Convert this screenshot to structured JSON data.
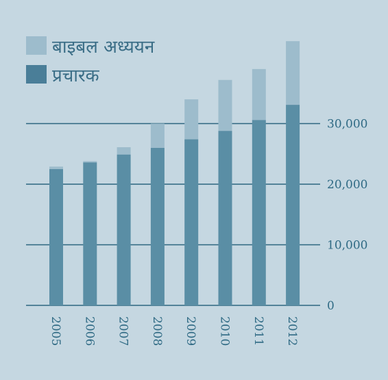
{
  "chart_data": {
    "type": "bar",
    "stacked": true,
    "categories": [
      "2005",
      "2006",
      "2007",
      "2008",
      "2009",
      "2010",
      "2011",
      "2012"
    ],
    "series": [
      {
        "name": "प्रचारक",
        "color": "#5a8ea5",
        "values": [
          22500,
          23600,
          24900,
          26000,
          27400,
          28800,
          30600,
          33100
        ]
      },
      {
        "name": "बाइबल अध्ययन",
        "color": "#9dbccc",
        "values": [
          400,
          200,
          1200,
          4000,
          6600,
          8400,
          8400,
          10500
        ]
      }
    ],
    "ylim": [
      0,
      45000
    ],
    "yticks": [
      0,
      10000,
      20000,
      30000
    ],
    "ytick_labels": [
      "0",
      "10,000",
      "20,000",
      "30,000"
    ],
    "grid": true,
    "legend_position": "top-left",
    "title": "",
    "xlabel": "",
    "ylabel": ""
  },
  "legend": {
    "items": [
      {
        "label": "बाइबल अध्ययन",
        "color": "#9dbccc"
      },
      {
        "label": "प्रचारक",
        "color": "#4a7e98"
      }
    ]
  },
  "colors": {
    "background": "#c5d7e1",
    "gridline": "#2d6680",
    "text": "#2f6a84"
  }
}
